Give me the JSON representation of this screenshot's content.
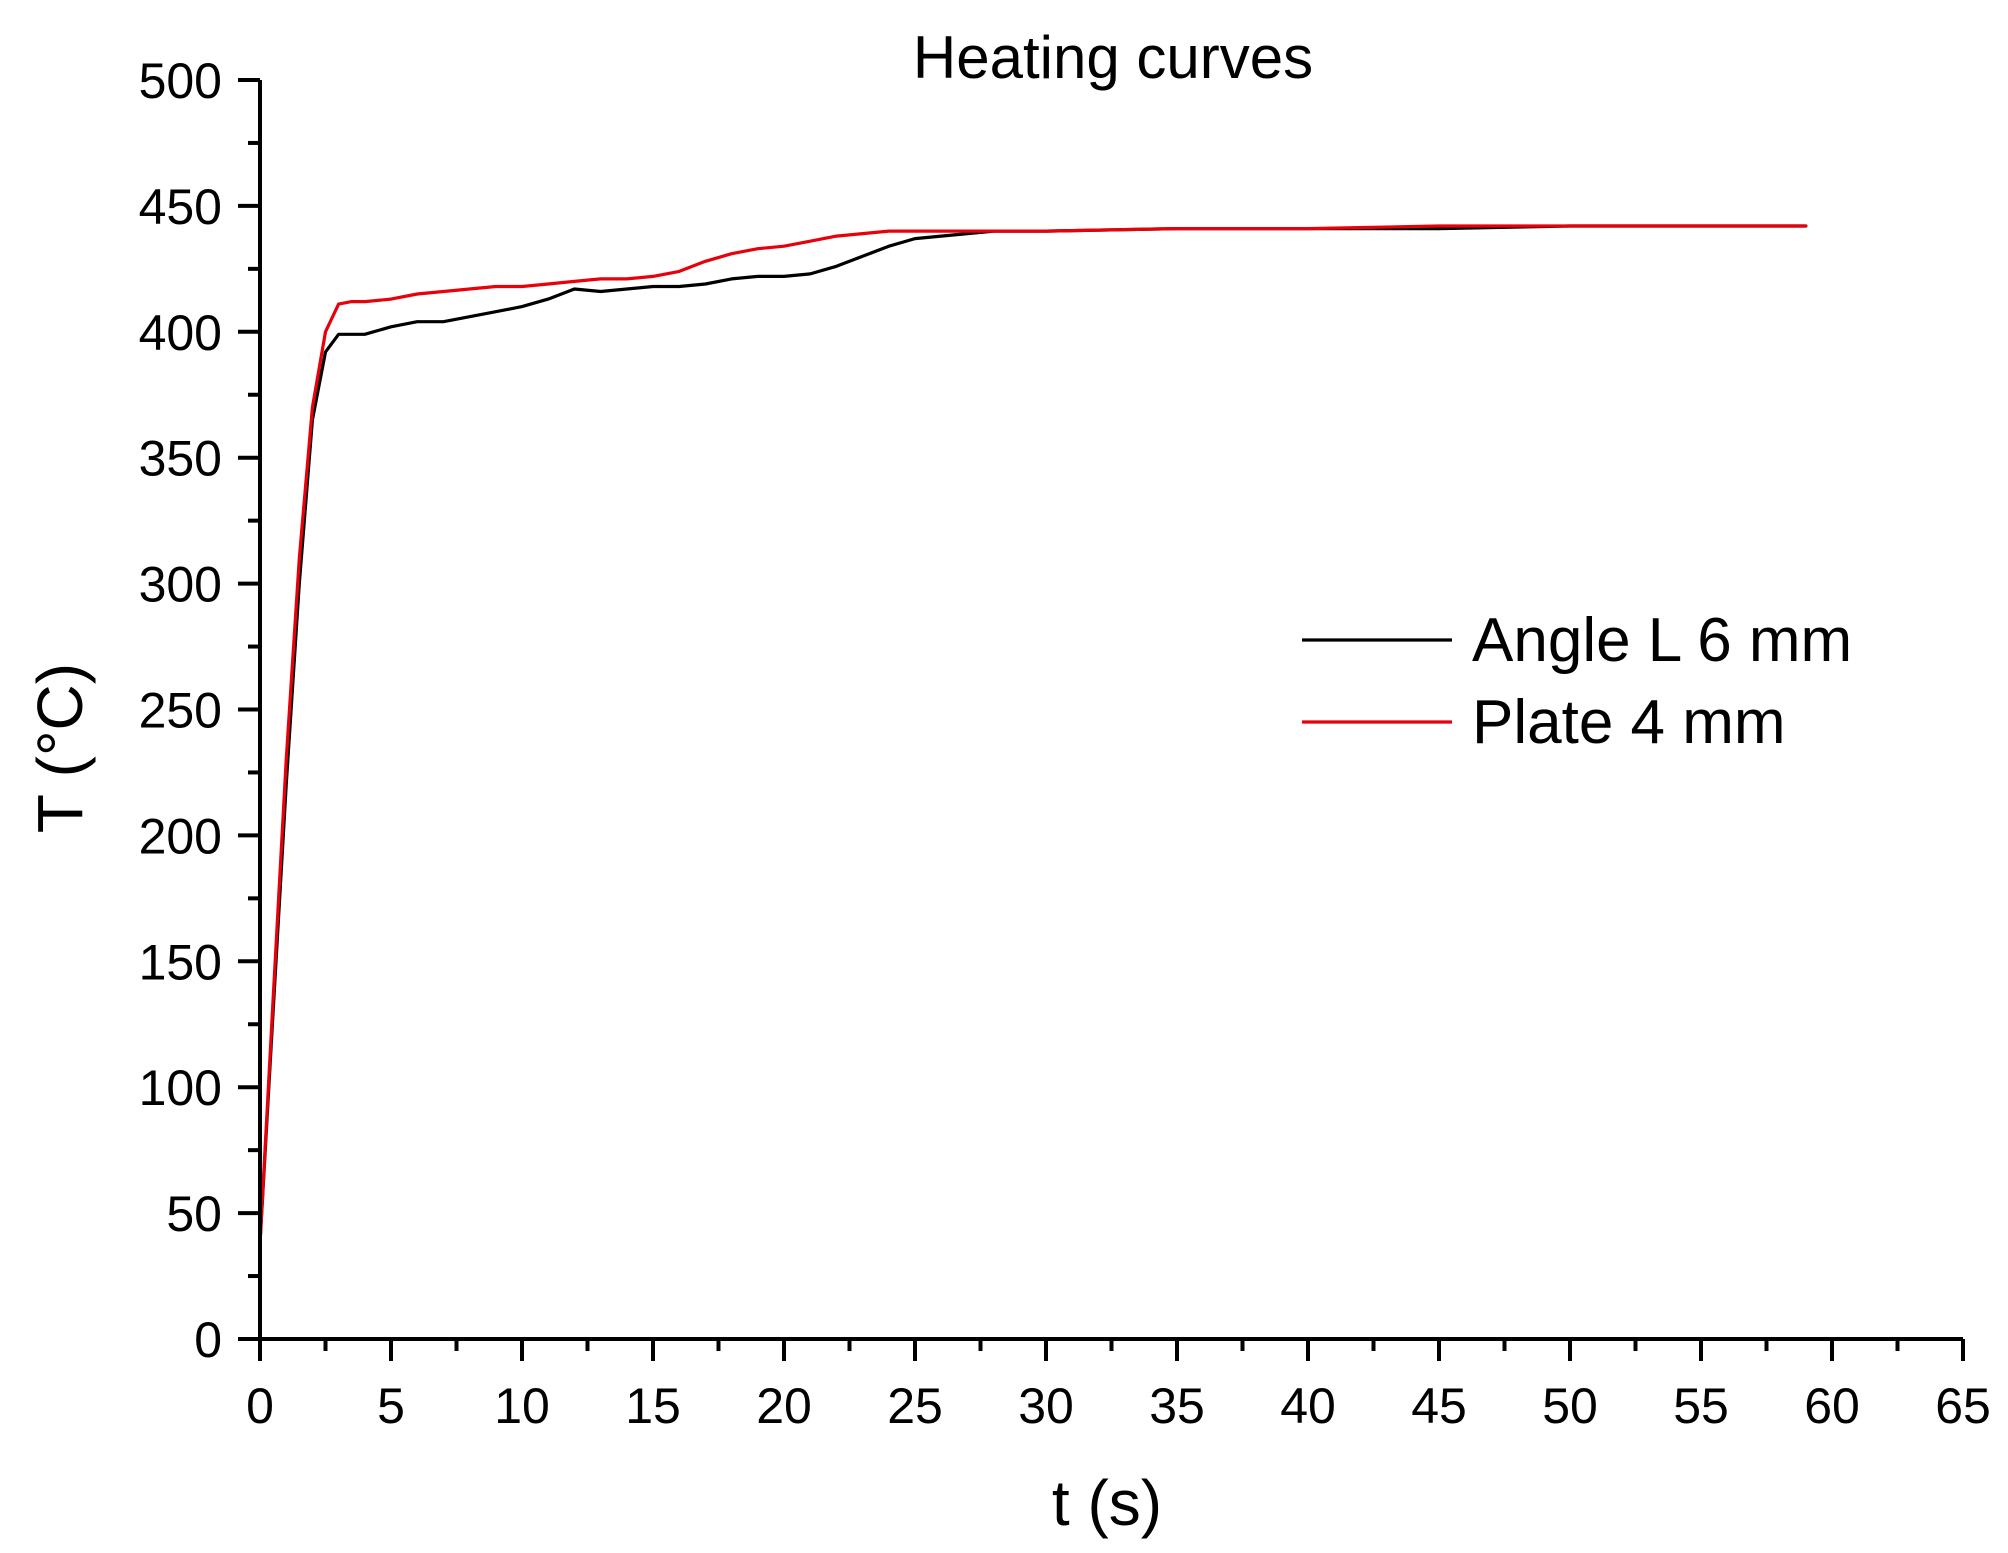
{
  "chart_data": {
    "type": "line",
    "title": "Heating curves",
    "xlabel": "t (s)",
    "ylabel": "T (°C)",
    "xlim": [
      0,
      65
    ],
    "ylim": [
      0,
      500
    ],
    "x_ticks": [
      0,
      5,
      10,
      15,
      20,
      25,
      30,
      35,
      40,
      45,
      50,
      55,
      60,
      65
    ],
    "y_ticks": [
      0,
      50,
      100,
      150,
      200,
      250,
      300,
      350,
      400,
      450,
      500
    ],
    "x_tick_labels": [
      "0",
      "5",
      "10",
      "15",
      "20",
      "25",
      "30",
      "35",
      "40",
      "45",
      "50",
      "55",
      "60",
      "65"
    ],
    "y_tick_labels": [
      "0",
      "50",
      "100",
      "150",
      "200",
      "250",
      "300",
      "350",
      "400",
      "450",
      "500"
    ],
    "grid": false,
    "legend_position": "center-right",
    "series": [
      {
        "name": "Angle L 6 mm",
        "color": "#000000",
        "x": [
          0,
          0.5,
          1.0,
          1.5,
          2.0,
          2.5,
          3.0,
          3.5,
          4.0,
          5.0,
          6.0,
          7.0,
          8.0,
          9.0,
          10.0,
          11.0,
          12.0,
          13.0,
          14.0,
          15.0,
          16.0,
          17.0,
          18.0,
          19.0,
          20.0,
          21.0,
          22.0,
          23.0,
          24.0,
          25.0,
          26.0,
          27.0,
          28.0,
          29.0,
          30.0,
          35.0,
          40.0,
          45.0,
          50.0,
          55.0,
          59.0
        ],
        "y": [
          38,
          130,
          220,
          300,
          365,
          392,
          399,
          399,
          399,
          402,
          404,
          404,
          406,
          408,
          410,
          413,
          417,
          416,
          417,
          418,
          418,
          419,
          421,
          422,
          422,
          423,
          426,
          430,
          434,
          437,
          438,
          439,
          440,
          440,
          440,
          441,
          441,
          441,
          442,
          442,
          442
        ]
      },
      {
        "name": "Plate 4 mm",
        "color": "#e8000b",
        "x": [
          0,
          0.5,
          1.0,
          1.5,
          2.0,
          2.5,
          3.0,
          3.5,
          4.0,
          5.0,
          6.0,
          7.0,
          8.0,
          9.0,
          10.0,
          11.0,
          12.0,
          13.0,
          14.0,
          15.0,
          16.0,
          17.0,
          18.0,
          19.0,
          20.0,
          21.0,
          22.0,
          23.0,
          24.0,
          25.0,
          26.0,
          27.0,
          28.0,
          29.0,
          30.0,
          35.0,
          40.0,
          45.0,
          50.0,
          55.0,
          59.0
        ],
        "y": [
          38,
          135,
          230,
          310,
          370,
          400,
          411,
          412,
          412,
          413,
          415,
          416,
          417,
          418,
          418,
          419,
          420,
          421,
          421,
          422,
          424,
          428,
          431,
          433,
          434,
          436,
          438,
          439,
          440,
          440,
          440,
          440,
          440,
          440,
          440,
          441,
          441,
          442,
          442,
          442,
          442
        ]
      }
    ]
  }
}
